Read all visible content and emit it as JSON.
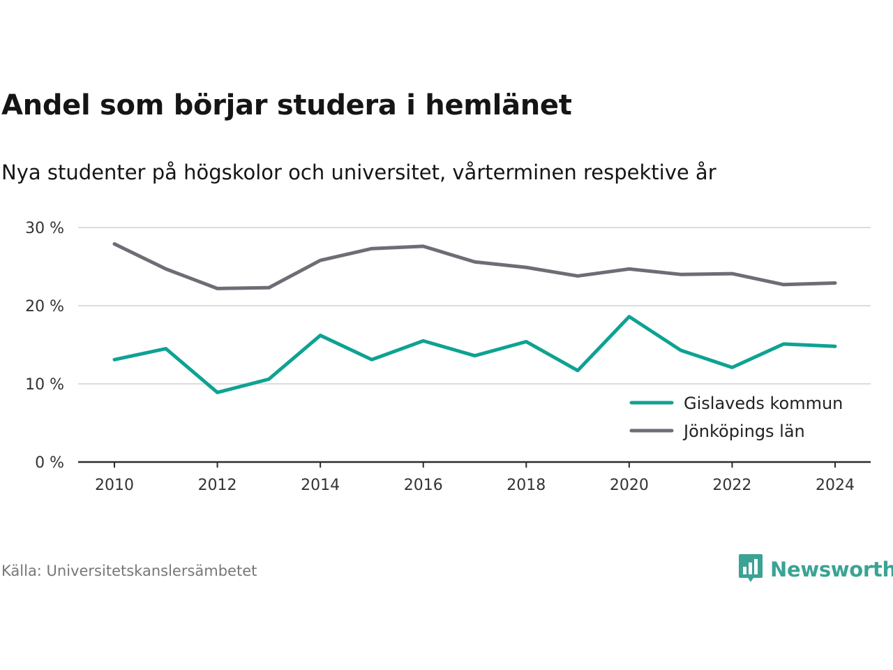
{
  "title": "Andel som börjar studera i hemlänet",
  "subtitle": "Nya studenter på högskolor och universitet, vårterminen respektive år",
  "source": "Källa: Universitetskanslersämbetet",
  "brand": {
    "name": "Newsworthy",
    "icon": "newsworthy-logo-icon",
    "color": "#3aa394"
  },
  "chart_data": {
    "type": "line",
    "title": "Andel som börjar studera i hemlänet",
    "subtitle": "Nya studenter på högskolor och universitet, vårterminen respektive år",
    "x": [
      2010,
      2011,
      2012,
      2013,
      2014,
      2015,
      2016,
      2017,
      2018,
      2019,
      2020,
      2021,
      2022,
      2023,
      2024
    ],
    "x_ticks": [
      2010,
      2012,
      2014,
      2016,
      2018,
      2020,
      2022,
      2024
    ],
    "y_ticks": [
      0,
      10,
      20,
      30
    ],
    "y_tick_labels": [
      "0 %",
      "10 %",
      "20 %",
      "30 %"
    ],
    "ylim": [
      0,
      30
    ],
    "xlim": [
      2010,
      2024
    ],
    "grid": true,
    "legend_position": "bottom-right",
    "series": [
      {
        "name": "Gislaveds kommun",
        "color": "#0ea292",
        "values": [
          13.1,
          14.5,
          8.9,
          10.6,
          16.2,
          13.1,
          15.5,
          13.6,
          15.4,
          11.7,
          18.6,
          14.3,
          12.1,
          15.1,
          14.8
        ]
      },
      {
        "name": "Jönköpings län",
        "color": "#6e6d76",
        "values": [
          27.9,
          24.7,
          22.2,
          22.3,
          25.8,
          27.3,
          27.6,
          25.6,
          24.9,
          23.8,
          24.7,
          24.0,
          24.1,
          22.7,
          22.9
        ]
      }
    ]
  }
}
